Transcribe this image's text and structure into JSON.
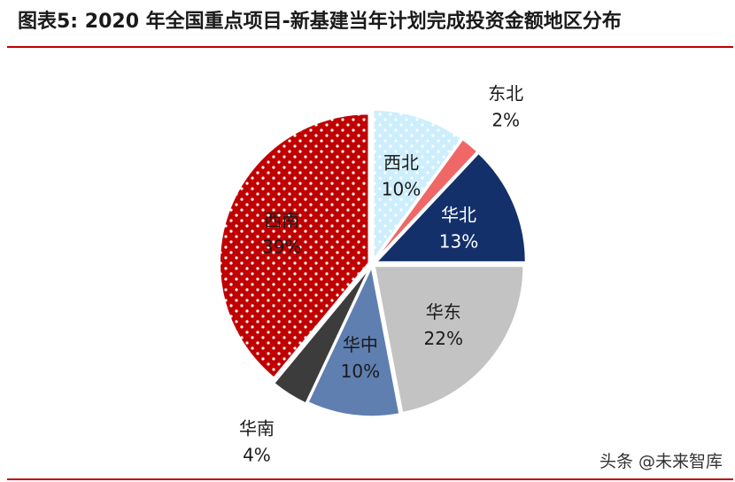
{
  "header": {
    "title": "图表5:   2020 年全国重点项目-新基建当年计划完成投资金额地区分布"
  },
  "watermark": {
    "text": "头条 @未来智库"
  },
  "chart_data": {
    "type": "pie",
    "title": "2020 年全国重点项目-新基建当年计划完成投资金额地区分布",
    "categories": [
      "西北",
      "东北",
      "华北",
      "华东",
      "华中",
      "华南",
      "西南"
    ],
    "values": [
      10,
      2,
      13,
      22,
      10,
      4,
      39
    ],
    "value_labels": [
      "10%",
      "2%",
      "13%",
      "22%",
      "10%",
      "4%",
      "39%"
    ],
    "colors": [
      "#cdeefc",
      "#f06767",
      "#13306b",
      "#c3c3c3",
      "#5e7fb0",
      "#3c3c3c",
      "#c00000"
    ],
    "label_colors": [
      "#1a1a1a",
      "#1a1a1a",
      "#ffffff",
      "#1a1a1a",
      "#1a1a1a",
      "#1a1a1a",
      "#1a1a1a"
    ],
    "label_placement": [
      "inside",
      "outside",
      "inside",
      "inside",
      "inside",
      "outside",
      "inside"
    ],
    "patterns": [
      "dots-white",
      "none",
      "none",
      "none",
      "none",
      "none",
      "dots-white"
    ],
    "start_angle_deg": 0,
    "direction": "clockwise",
    "legend": "none"
  }
}
